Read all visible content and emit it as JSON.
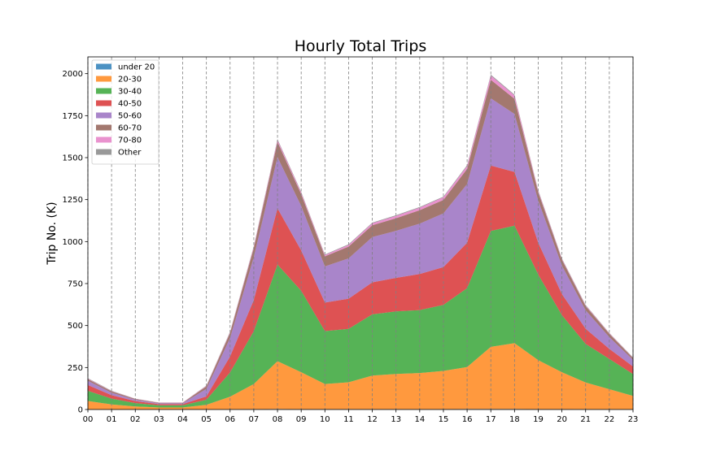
{
  "chart_data": {
    "type": "area",
    "stacked": true,
    "title": "Hourly Total Trips",
    "xlabel": "",
    "ylabel": "Trip No. (K)",
    "x": [
      "00",
      "01",
      "02",
      "03",
      "04",
      "05",
      "06",
      "07",
      "08",
      "09",
      "10",
      "11",
      "12",
      "13",
      "14",
      "15",
      "16",
      "17",
      "18",
      "19",
      "20",
      "21",
      "22",
      "23"
    ],
    "ylim": [
      0,
      2100
    ],
    "yticks": [
      0,
      250,
      500,
      750,
      1000,
      1250,
      1500,
      1750,
      2000
    ],
    "grid": "vertical dashed lines at each x tick",
    "legend_position": "upper-left",
    "series": [
      {
        "name": "under 20",
        "color": "#1f77b4",
        "values": [
          1,
          0,
          0,
          0,
          0,
          0,
          1,
          2,
          3,
          2,
          2,
          2,
          2,
          2,
          2,
          2,
          3,
          3,
          3,
          2,
          2,
          1,
          1,
          1
        ]
      },
      {
        "name": "20-30",
        "color": "#ff7f0e",
        "values": [
          50,
          30,
          18,
          12,
          12,
          28,
          75,
          150,
          285,
          220,
          150,
          160,
          200,
          210,
          215,
          228,
          250,
          370,
          392,
          292,
          220,
          160,
          120,
          80
        ]
      },
      {
        "name": "30-40",
        "color": "#2ca02c",
        "values": [
          60,
          35,
          20,
          13,
          13,
          30,
          145,
          315,
          575,
          485,
          315,
          318,
          365,
          372,
          375,
          393,
          470,
          690,
          700,
          510,
          340,
          230,
          180,
          130
        ]
      },
      {
        "name": "40-50",
        "color": "#d62728",
        "values": [
          35,
          20,
          12,
          7,
          7,
          20,
          95,
          185,
          335,
          240,
          170,
          180,
          190,
          200,
          215,
          225,
          270,
          390,
          320,
          190,
          125,
          90,
          60,
          45
        ]
      },
      {
        "name": "50-60",
        "color": "#9467bd",
        "values": [
          25,
          15,
          8,
          5,
          5,
          45,
          110,
          255,
          305,
          265,
          215,
          240,
          270,
          280,
          300,
          320,
          350,
          400,
          345,
          250,
          170,
          110,
          70,
          40
        ]
      },
      {
        "name": "60-70",
        "color": "#8c564b",
        "values": [
          10,
          8,
          5,
          3,
          3,
          15,
          30,
          55,
          90,
          70,
          60,
          70,
          70,
          75,
          80,
          80,
          90,
          110,
          90,
          50,
          35,
          25,
          20,
          10
        ]
      },
      {
        "name": "70-80",
        "color": "#e377c2",
        "values": [
          3,
          2,
          1,
          1,
          1,
          3,
          5,
          8,
          12,
          10,
          8,
          10,
          12,
          14,
          15,
          16,
          17,
          25,
          20,
          8,
          5,
          4,
          3,
          2
        ]
      },
      {
        "name": "Other",
        "color": "#7f7f7f",
        "values": [
          2,
          2,
          1,
          1,
          1,
          2,
          3,
          4,
          5,
          4,
          3,
          4,
          4,
          4,
          4,
          4,
          5,
          6,
          5,
          4,
          3,
          3,
          2,
          2
        ]
      }
    ]
  }
}
